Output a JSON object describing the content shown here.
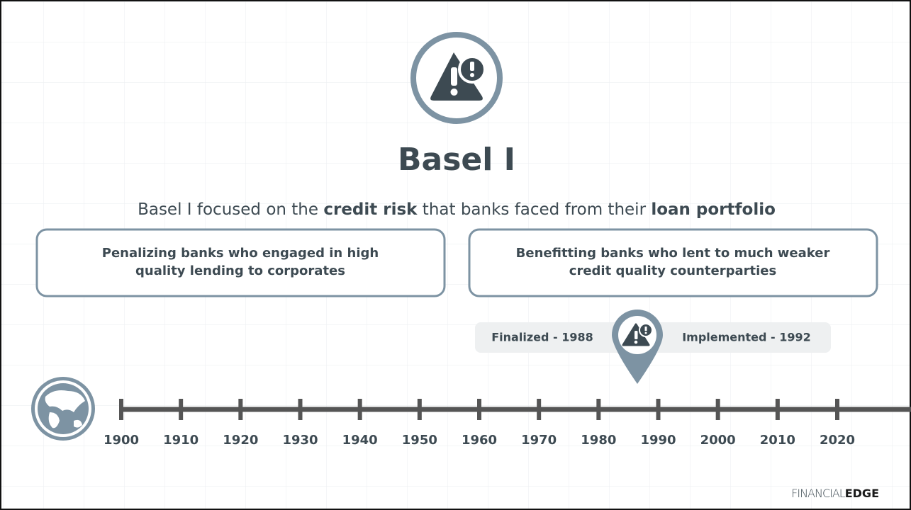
{
  "header": {
    "title": "Basel I",
    "subtitle": [
      {
        "text": "Basel I focused on the ",
        "bold": false
      },
      {
        "text": "credit risk",
        "bold": true
      },
      {
        "text": " that banks faced from their ",
        "bold": false
      },
      {
        "text": "loan portfolio",
        "bold": true
      }
    ]
  },
  "boxes": [
    {
      "lines": [
        "Penalizing banks who engaged in high",
        "quality lending to corporates"
      ]
    },
    {
      "lines": [
        "Benefitting banks who lent to much weaker",
        "credit quality counterparties"
      ]
    }
  ],
  "pin": {
    "left": "Finalized - 1988",
    "right": "Implemented - 1992"
  },
  "timeline": {
    "years": [
      "1900",
      "1910",
      "1920",
      "1930",
      "1940",
      "1950",
      "1960",
      "1970",
      "1980",
      "1990",
      "2000",
      "2010",
      "2020"
    ]
  },
  "logo": {
    "light": "FINANCIAL",
    "bold": "EDGE"
  }
}
